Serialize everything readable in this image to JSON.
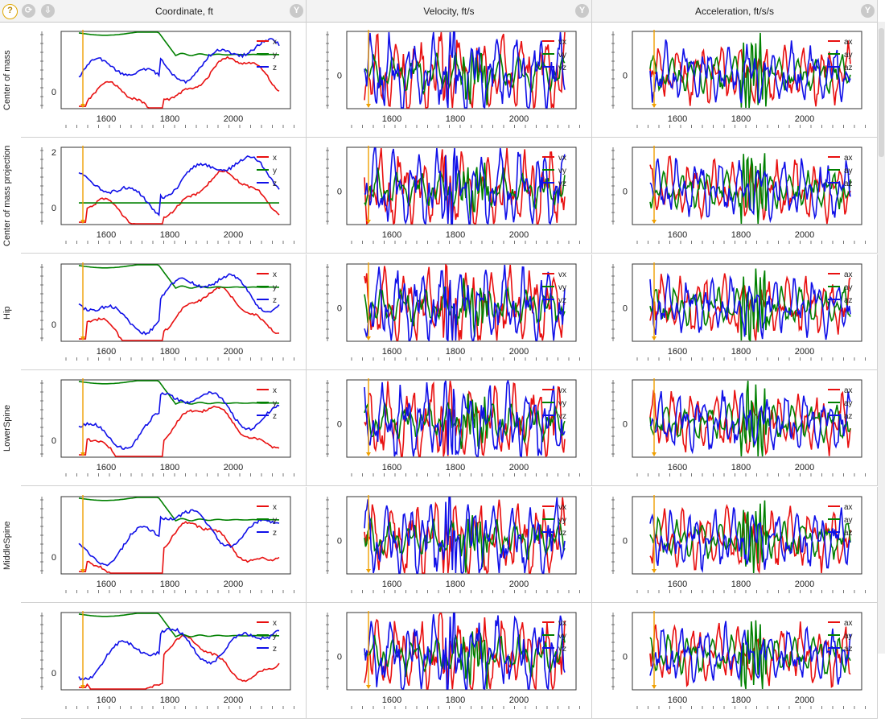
{
  "toolbar": {
    "help_icon_glyph": "?",
    "refresh_icon_glyph": "⟳",
    "download_icon_glyph": "⇩",
    "filter_icon_glyph": "Y"
  },
  "columns": [
    {
      "title": "Coordinate, ft",
      "legend": [
        "x",
        "y",
        "z"
      ]
    },
    {
      "title": "Velocity, ft/s",
      "legend": [
        "vx",
        "vy",
        "vz"
      ]
    },
    {
      "title": "Acceleration, ft/s/s",
      "legend": [
        "ax",
        "ay",
        "az"
      ]
    }
  ],
  "rows": [
    {
      "label": "Center of mass"
    },
    {
      "label": "Center of mass projection"
    },
    {
      "label": "Hip"
    },
    {
      "label": "LowerSpine"
    },
    {
      "label": "MiddleSpine"
    },
    {
      "label": ""
    }
  ],
  "series_colors": {
    "x": "#e81010",
    "y": "#008000",
    "z": "#1010e8",
    "marker": "#f0a000"
  },
  "axis": {
    "x_ticks": [
      "1600",
      "1800",
      "2000"
    ],
    "zero_label": "0",
    "two_label": "2"
  }
}
